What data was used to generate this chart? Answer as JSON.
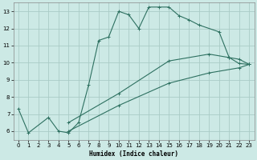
{
  "xlabel": "Humidex (Indice chaleur)",
  "bg_color": "#cce9e5",
  "line_color": "#2d7060",
  "grid_color": "#aaccc6",
  "xlim": [
    -0.5,
    23.5
  ],
  "ylim": [
    5.5,
    13.5
  ],
  "xticks": [
    0,
    1,
    2,
    3,
    4,
    5,
    6,
    7,
    8,
    9,
    10,
    11,
    12,
    13,
    14,
    15,
    16,
    17,
    18,
    19,
    20,
    21,
    22,
    23
  ],
  "yticks": [
    6,
    7,
    8,
    9,
    10,
    11,
    12,
    13
  ],
  "line_main_x": [
    0,
    1,
    3,
    4,
    5,
    6,
    7,
    8,
    9,
    10,
    11,
    12,
    13,
    14,
    15,
    16,
    17,
    18,
    20,
    21,
    22,
    23
  ],
  "line_main_y": [
    7.3,
    5.9,
    6.8,
    6.0,
    5.9,
    6.5,
    8.7,
    11.3,
    11.5,
    13.0,
    12.8,
    12.0,
    13.25,
    13.25,
    13.25,
    12.75,
    12.5,
    12.2,
    11.8,
    10.3,
    10.2,
    9.9
  ],
  "line_upper_x": [
    5,
    10,
    15,
    19,
    21,
    22,
    23
  ],
  "line_upper_y": [
    6.5,
    8.2,
    10.1,
    10.5,
    10.3,
    9.95,
    9.9
  ],
  "line_lower_x": [
    5,
    10,
    15,
    19,
    22,
    23
  ],
  "line_lower_y": [
    6.0,
    7.5,
    8.8,
    9.4,
    9.7,
    9.9
  ]
}
